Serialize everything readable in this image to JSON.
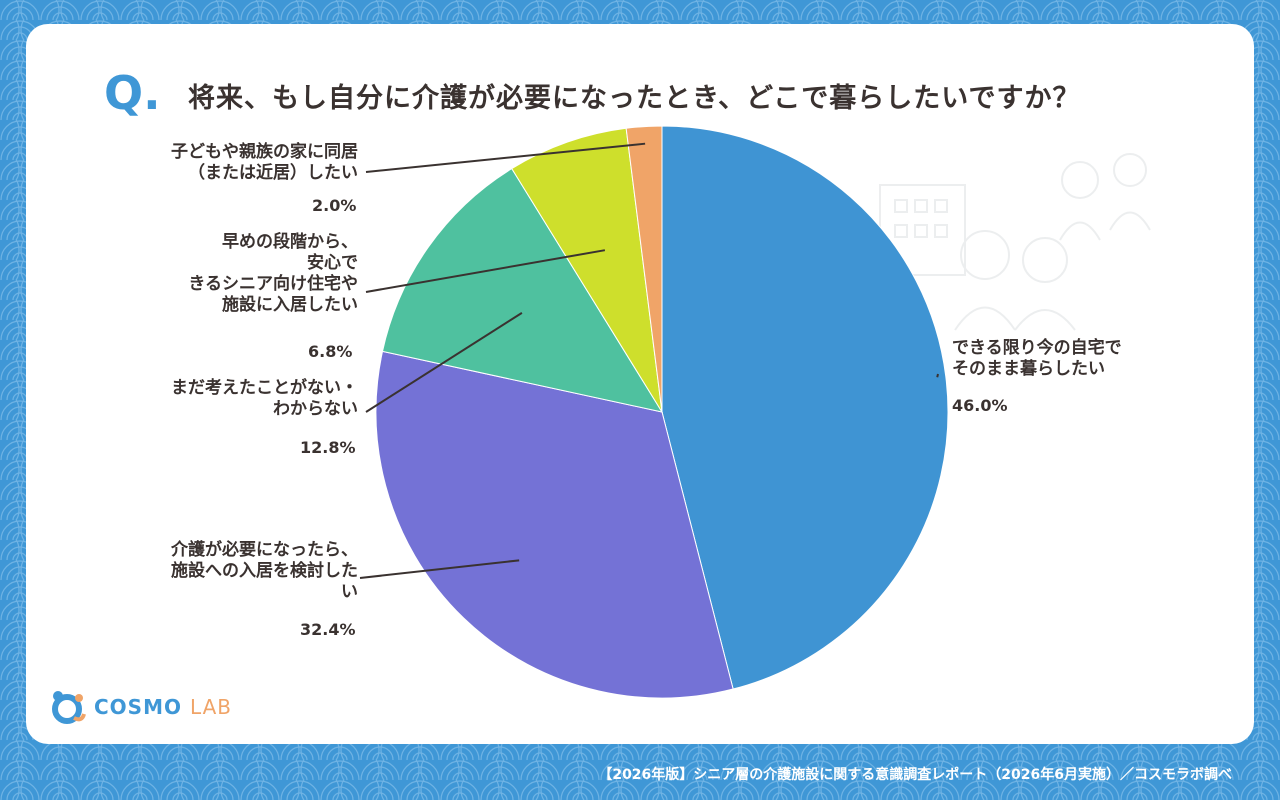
{
  "question": {
    "mark": "Q.",
    "text": "将来、もし自分に介護が必要になったとき、どこで暮らしたいですか？"
  },
  "chart_data": {
    "type": "pie",
    "start": "12 o'clock, clockwise",
    "slices": [
      {
        "label_lines": [
          "できる限り今の自宅で",
          "そのまま暮らしたい"
        ],
        "value": 46.0,
        "display": "46.0%",
        "color": "#3f94d3"
      },
      {
        "label_lines": [
          "介護が必要になったら、",
          "施設への入居を検討した",
          "い"
        ],
        "value": 32.4,
        "display": "32.4%",
        "color": "#7472d6"
      },
      {
        "label_lines": [
          "まだ考えたことがない・",
          "わからない"
        ],
        "value": 12.8,
        "display": "12.8%",
        "color": "#4fc19f"
      },
      {
        "label_lines": [
          "早めの段階から、",
          "安心で",
          "きるシニア向け住宅や",
          "施設に入居したい"
        ],
        "value": 6.8,
        "display": "6.8%",
        "color": "#cedf2c"
      },
      {
        "label_lines": [
          "子どもや親族の家に同居",
          "（または近居）したい"
        ],
        "value": 2.0,
        "display": "2.0%",
        "color": "#f0a468"
      }
    ]
  },
  "logo": {
    "cosmo": "COSMO",
    "lab": "LAB"
  },
  "footer": "【2026年版】シニア層の介護施設に関する意識調査レポート（2026年6月実施）／コスモラボ調べ"
}
